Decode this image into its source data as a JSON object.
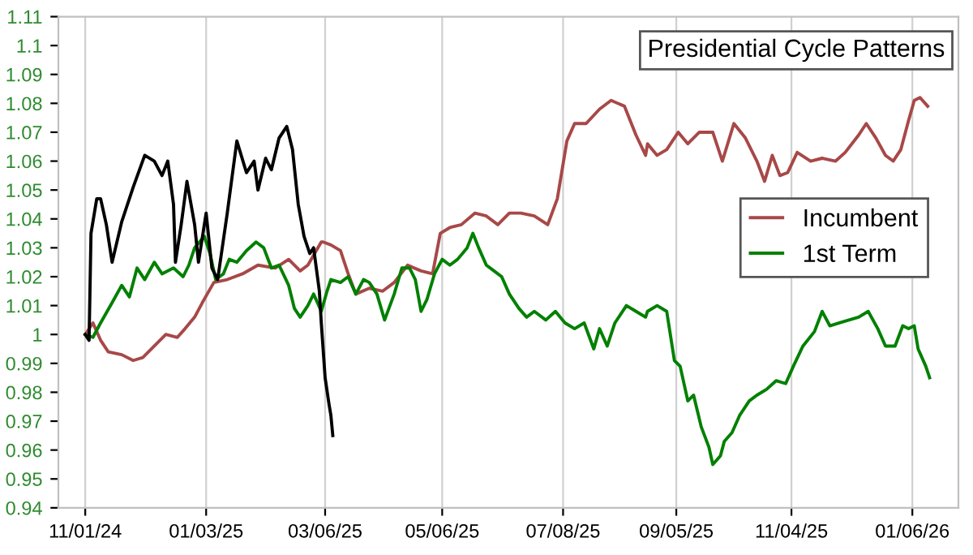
{
  "chart_data": {
    "type": "line",
    "title": "Presidential Cycle Patterns",
    "xlim": [
      "2024-10-18",
      "2026-01-30"
    ],
    "xticks": [
      {
        "value": "2024-11-01",
        "label": "11/01/24"
      },
      {
        "value": "2025-01-03",
        "label": "01/03/25"
      },
      {
        "value": "2025-03-06",
        "label": "03/06/25"
      },
      {
        "value": "2025-05-06",
        "label": "05/06/25"
      },
      {
        "value": "2025-07-08",
        "label": "07/08/25"
      },
      {
        "value": "2025-09-05",
        "label": "09/05/25"
      },
      {
        "value": "2025-11-04",
        "label": "11/04/25"
      },
      {
        "value": "2026-01-06",
        "label": "01/06/26"
      }
    ],
    "ylim": [
      0.94,
      1.11
    ],
    "yticks": [
      0.94,
      0.95,
      0.96,
      0.97,
      0.98,
      0.99,
      1,
      1.01,
      1.02,
      1.03,
      1.04,
      1.05,
      1.06,
      1.07,
      1.08,
      1.09,
      1.1,
      1.11
    ],
    "grid": "x",
    "legend": "right",
    "marker": "none",
    "line_style": "solid",
    "series": [
      {
        "name": "Incumbent",
        "color": "#a84848",
        "x": [
          "2024-11-01",
          "2024-11-05",
          "2024-11-09",
          "2024-11-13",
          "2024-11-20",
          "2024-11-26",
          "2024-12-01",
          "2024-12-07",
          "2024-12-13",
          "2024-12-19",
          "2024-12-23",
          "2024-12-28",
          "2025-01-01",
          "2025-01-07",
          "2025-01-14",
          "2025-01-22",
          "2025-01-30",
          "2025-02-08",
          "2025-02-15",
          "2025-02-21",
          "2025-02-25",
          "2025-03-04",
          "2025-03-05",
          "2025-03-09",
          "2025-03-14",
          "2025-03-18",
          "2025-03-22",
          "2025-03-29",
          "2025-04-05",
          "2025-04-11",
          "2025-04-18",
          "2025-04-25",
          "2025-05-01",
          "2025-05-05",
          "2025-05-10",
          "2025-05-16",
          "2025-05-23",
          "2025-05-29",
          "2025-06-04",
          "2025-06-10",
          "2025-06-16",
          "2025-06-23",
          "2025-06-30",
          "2025-07-05",
          "2025-07-10",
          "2025-07-14",
          "2025-07-20",
          "2025-07-27",
          "2025-08-02",
          "2025-08-09",
          "2025-08-15",
          "2025-08-20",
          "2025-08-21",
          "2025-08-26",
          "2025-08-31",
          "2025-09-06",
          "2025-09-11",
          "2025-09-17",
          "2025-09-24",
          "2025-09-29",
          "2025-10-05",
          "2025-10-11",
          "2025-10-17",
          "2025-10-21",
          "2025-10-25",
          "2025-10-29",
          "2025-11-02",
          "2025-11-07",
          "2025-11-14",
          "2025-11-20",
          "2025-11-27",
          "2025-12-02",
          "2025-12-09",
          "2025-12-13",
          "2025-12-18",
          "2025-12-23",
          "2025-12-27",
          "2025-12-31",
          "2026-01-04",
          "2026-01-07",
          "2026-01-10",
          "2026-01-14"
        ],
        "values": [
          1.0,
          1.004,
          0.998,
          0.994,
          0.993,
          0.991,
          0.992,
          0.996,
          1.0,
          0.999,
          1.002,
          1.006,
          1.011,
          1.018,
          1.019,
          1.021,
          1.024,
          1.023,
          1.026,
          1.022,
          1.024,
          1.032,
          1.032,
          1.031,
          1.029,
          1.021,
          1.014,
          1.016,
          1.015,
          1.018,
          1.024,
          1.022,
          1.021,
          1.035,
          1.037,
          1.038,
          1.042,
          1.041,
          1.038,
          1.042,
          1.042,
          1.041,
          1.038,
          1.047,
          1.067,
          1.073,
          1.073,
          1.078,
          1.081,
          1.079,
          1.069,
          1.062,
          1.066,
          1.062,
          1.064,
          1.07,
          1.066,
          1.07,
          1.07,
          1.06,
          1.073,
          1.068,
          1.06,
          1.053,
          1.062,
          1.055,
          1.056,
          1.063,
          1.06,
          1.061,
          1.06,
          1.063,
          1.069,
          1.073,
          1.068,
          1.062,
          1.06,
          1.064,
          1.074,
          1.081,
          1.082,
          1.079
        ]
      },
      {
        "name": "1st Term",
        "color": "#008000",
        "x": [
          "2024-11-01",
          "2024-11-05",
          "2024-11-09",
          "2024-11-15",
          "2024-11-20",
          "2024-11-24",
          "2024-11-28",
          "2024-12-02",
          "2024-12-07",
          "2024-12-11",
          "2024-12-17",
          "2024-12-22",
          "2024-12-25",
          "2024-12-28",
          "2025-01-02",
          "2025-01-05",
          "2025-01-08",
          "2025-01-12",
          "2025-01-15",
          "2025-01-19",
          "2025-01-24",
          "2025-01-29",
          "2025-02-02",
          "2025-02-06",
          "2025-02-10",
          "2025-02-15",
          "2025-02-18",
          "2025-02-21",
          "2025-02-25",
          "2025-02-28",
          "2025-03-02",
          "2025-03-04",
          "2025-03-07",
          "2025-03-09",
          "2025-03-14",
          "2025-03-18",
          "2025-03-22",
          "2025-03-26",
          "2025-03-29",
          "2025-04-02",
          "2025-04-06",
          "2025-04-11",
          "2025-04-15",
          "2025-04-19",
          "2025-04-22",
          "2025-04-25",
          "2025-04-28",
          "2025-05-02",
          "2025-05-06",
          "2025-05-10",
          "2025-05-14",
          "2025-05-19",
          "2025-05-22",
          "2025-05-25",
          "2025-05-29",
          "2025-06-02",
          "2025-06-06",
          "2025-06-10",
          "2025-06-15",
          "2025-06-19",
          "2025-06-23",
          "2025-06-29",
          "2025-07-04",
          "2025-07-09",
          "2025-07-14",
          "2025-07-19",
          "2025-07-24",
          "2025-07-27",
          "2025-07-31",
          "2025-08-04",
          "2025-08-10",
          "2025-08-15",
          "2025-08-20",
          "2025-08-21",
          "2025-08-26",
          "2025-08-31",
          "2025-09-04",
          "2025-09-07",
          "2025-09-11",
          "2025-09-14",
          "2025-09-18",
          "2025-09-22",
          "2025-09-24",
          "2025-09-28",
          "2025-09-30",
          "2025-10-04",
          "2025-10-08",
          "2025-10-13",
          "2025-10-17",
          "2025-10-22",
          "2025-10-27",
          "2025-11-01",
          "2025-11-05",
          "2025-11-10",
          "2025-11-16",
          "2025-11-20",
          "2025-11-24",
          "2025-11-29",
          "2025-12-04",
          "2025-12-09",
          "2025-12-14",
          "2025-12-19",
          "2025-12-23",
          "2025-12-28",
          "2026-01-01",
          "2026-01-04",
          "2026-01-07",
          "2026-01-09",
          "2026-01-13",
          "2026-01-15"
        ],
        "values": [
          1.0,
          0.999,
          1.004,
          1.011,
          1.017,
          1.013,
          1.023,
          1.019,
          1.025,
          1.021,
          1.023,
          1.02,
          1.024,
          1.03,
          1.034,
          1.028,
          1.019,
          1.021,
          1.026,
          1.025,
          1.029,
          1.032,
          1.03,
          1.023,
          1.024,
          1.017,
          1.009,
          1.006,
          1.01,
          1.014,
          1.011,
          1.008,
          1.015,
          1.019,
          1.018,
          1.02,
          1.014,
          1.019,
          1.018,
          1.014,
          1.005,
          1.014,
          1.023,
          1.023,
          1.019,
          1.008,
          1.012,
          1.021,
          1.026,
          1.024,
          1.026,
          1.03,
          1.035,
          1.03,
          1.024,
          1.022,
          1.02,
          1.014,
          1.009,
          1.006,
          1.008,
          1.005,
          1.008,
          1.004,
          1.002,
          1.004,
          0.995,
          1.002,
          0.996,
          1.004,
          1.01,
          1.008,
          1.006,
          1.008,
          1.01,
          1.008,
          0.991,
          0.989,
          0.977,
          0.979,
          0.968,
          0.961,
          0.955,
          0.958,
          0.963,
          0.966,
          0.972,
          0.977,
          0.979,
          0.981,
          0.984,
          0.983,
          0.989,
          0.996,
          1.001,
          1.008,
          1.003,
          1.004,
          1.005,
          1.006,
          1.008,
          1.002,
          0.996,
          0.996,
          1.003,
          1.002,
          1.003,
          0.995,
          0.989,
          0.985
        ]
      },
      {
        "color": "#000000",
        "x": [
          "2024-11-01",
          "2024-11-03",
          "2024-11-04",
          "2024-11-07",
          "2024-11-09",
          "2024-11-12",
          "2024-11-15",
          "2024-11-20",
          "2024-11-26",
          "2024-12-02",
          "2024-12-07",
          "2024-12-11",
          "2024-12-14",
          "2024-12-17",
          "2024-12-18",
          "2024-12-21",
          "2024-12-24",
          "2024-12-28",
          "2024-12-30",
          "2025-01-03",
          "2025-01-06",
          "2025-01-09",
          "2025-01-14",
          "2025-01-19",
          "2025-01-24",
          "2025-01-28",
          "2025-01-30",
          "2025-02-03",
          "2025-02-06",
          "2025-02-10",
          "2025-02-14",
          "2025-02-17",
          "2025-02-20",
          "2025-02-23",
          "2025-02-26",
          "2025-02-28",
          "2025-03-03",
          "2025-03-04",
          "2025-03-06",
          "2025-03-08",
          "2025-03-09",
          "2025-03-10"
        ],
        "values": [
          1.0,
          0.998,
          1.035,
          1.047,
          1.047,
          1.038,
          1.025,
          1.039,
          1.051,
          1.062,
          1.06,
          1.055,
          1.06,
          1.045,
          1.025,
          1.038,
          1.053,
          1.038,
          1.025,
          1.042,
          1.023,
          1.019,
          1.042,
          1.067,
          1.056,
          1.06,
          1.05,
          1.061,
          1.057,
          1.068,
          1.072,
          1.064,
          1.045,
          1.034,
          1.028,
          1.03,
          1.015,
          1.004,
          0.985,
          0.976,
          0.972,
          0.965
        ]
      }
    ]
  }
}
